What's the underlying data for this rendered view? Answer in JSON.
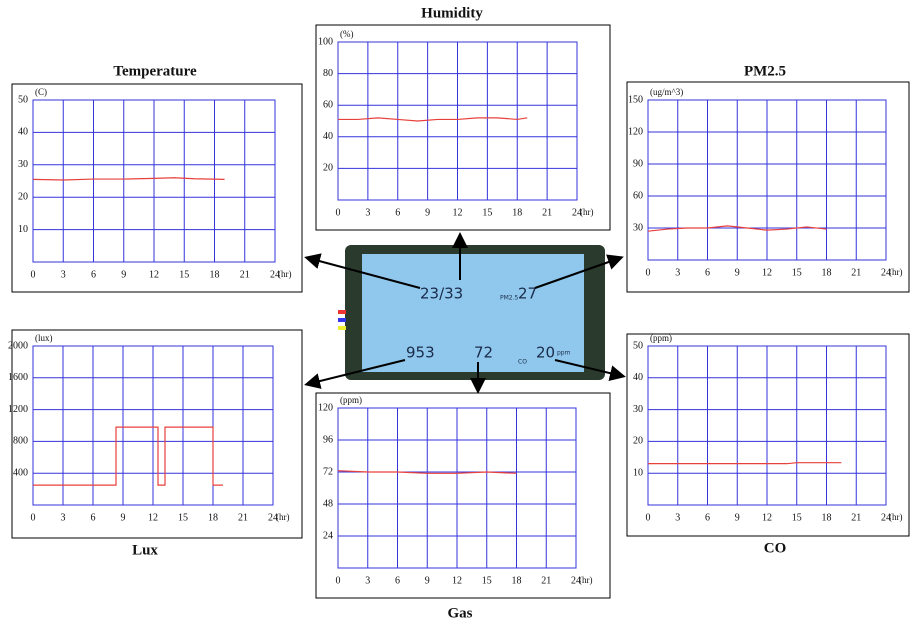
{
  "chart_data": [
    {
      "type": "line",
      "title": "Temperature",
      "ylabel": "(C)",
      "xlabel": "(hr)",
      "grid": true,
      "xlim": [
        0,
        24
      ],
      "xticks": [
        0,
        3,
        6,
        9,
        12,
        15,
        18,
        21,
        24
      ],
      "ylim": [
        0,
        50
      ],
      "yticks": [
        10,
        20,
        30,
        40,
        50
      ],
      "series": [
        {
          "color": "#e8403c",
          "x": [
            0,
            3,
            6,
            9,
            12,
            14,
            16,
            19
          ],
          "values": [
            25.5,
            25.3,
            25.6,
            25.6,
            25.8,
            26,
            25.7,
            25.5
          ]
        }
      ]
    },
    {
      "type": "line",
      "title": "Humidity",
      "ylabel": "(%)",
      "xlabel": "(hr)",
      "grid": true,
      "xlim": [
        0,
        24
      ],
      "xticks": [
        0,
        3,
        6,
        9,
        12,
        15,
        18,
        21,
        24
      ],
      "ylim": [
        0,
        100
      ],
      "yticks": [
        20,
        40,
        60,
        80,
        100
      ],
      "series": [
        {
          "color": "#e8403c",
          "x": [
            0,
            2,
            4,
            6,
            8,
            10,
            12,
            14,
            16,
            18,
            19
          ],
          "values": [
            51,
            51,
            52,
            51,
            50,
            51,
            51,
            52,
            52,
            51,
            52
          ]
        }
      ]
    },
    {
      "type": "line",
      "title": "PM2.5",
      "ylabel": "(ug/m^3)",
      "xlabel": "(hr)",
      "grid": true,
      "xlim": [
        0,
        24
      ],
      "xticks": [
        0,
        3,
        6,
        9,
        12,
        15,
        18,
        21,
        24
      ],
      "ylim": [
        0,
        150
      ],
      "yticks": [
        30,
        60,
        90,
        120,
        150
      ],
      "series": [
        {
          "color": "#e8403c",
          "x": [
            0,
            2,
            4,
            6,
            8,
            10,
            12,
            14,
            16,
            18
          ],
          "values": [
            27,
            29,
            30,
            30,
            32,
            30,
            28,
            29,
            31,
            29
          ]
        }
      ]
    },
    {
      "type": "line",
      "title": "Lux",
      "ylabel": "(lux)",
      "xlabel": "(hr)",
      "grid": true,
      "xlim": [
        0,
        24
      ],
      "xticks": [
        0,
        3,
        6,
        9,
        12,
        15,
        18,
        21,
        24
      ],
      "ylim": [
        0,
        2000
      ],
      "yticks": [
        400,
        800,
        1200,
        1600,
        2000
      ],
      "series": [
        {
          "color": "#e8403c",
          "x": [
            0,
            8.3,
            8.3,
            12.5,
            12.5,
            13.2,
            13.2,
            18,
            18,
            19
          ],
          "values": [
            250,
            250,
            980,
            980,
            250,
            250,
            980,
            980,
            250,
            250
          ]
        }
      ]
    },
    {
      "type": "line",
      "title": "Gas",
      "ylabel": "(ppm)",
      "xlabel": "(hr)",
      "grid": true,
      "xlim": [
        0,
        24
      ],
      "xticks": [
        0,
        3,
        6,
        9,
        12,
        15,
        18,
        21,
        24
      ],
      "ylim": [
        0,
        120
      ],
      "yticks": [
        24,
        48,
        72,
        96,
        120
      ],
      "series": [
        {
          "color": "#e8403c",
          "x": [
            0,
            3,
            6,
            9,
            12,
            15,
            18
          ],
          "values": [
            73,
            72,
            72,
            71,
            71,
            72,
            71
          ]
        }
      ]
    },
    {
      "type": "line",
      "title": "CO",
      "ylabel": "(ppm)",
      "xlabel": "(hr)",
      "grid": true,
      "xlim": [
        0,
        24
      ],
      "xticks": [
        0,
        3,
        6,
        9,
        12,
        15,
        18,
        21,
        24
      ],
      "ylim": [
        0,
        50
      ],
      "yticks": [
        10,
        20,
        30,
        40,
        50
      ],
      "series": [
        {
          "color": "#e8403c",
          "x": [
            0,
            4,
            8,
            12,
            14,
            15,
            17,
            19.5
          ],
          "values": [
            13,
            13,
            13,
            13,
            13,
            13.3,
            13.3,
            13.3
          ]
        }
      ]
    }
  ],
  "device": {
    "readings": [
      "23/33",
      "27",
      "953",
      "72",
      "20"
    ],
    "labels": [
      "PM2.5",
      "CO",
      "ppm"
    ]
  }
}
